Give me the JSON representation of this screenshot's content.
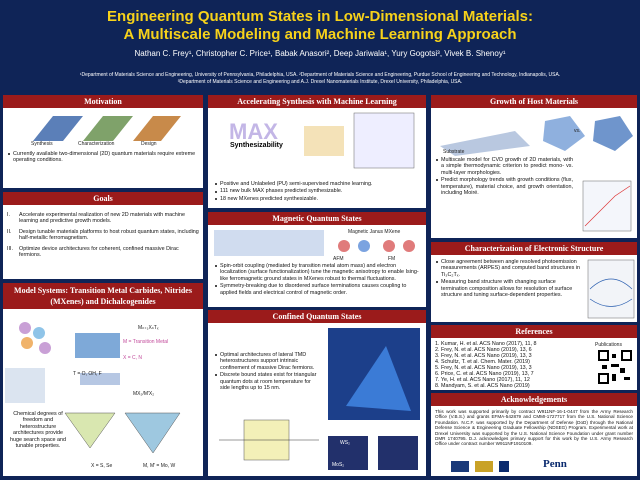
{
  "header": {
    "title_line1": "Engineering Quantum States in Low-Dimensional Materials:",
    "title_line2": "A Multiscale Modeling and Machine Learning Approach",
    "authors": "Nathan C. Frey¹, Christopher C. Price¹, Babak Anasori², Deep Jariwala¹, Yury Gogotsi³, Vivek B. Shenoy¹",
    "affiliations": [
      "¹Department of Materials Science and Engineering, University of Pennsylvania, Philadelphia, USA. ²Department of Materials Science and Engineering, Purdue School of Engineering and Technology, Indianapolis, USA.",
      "³Department of Materials Science and Engineering and A.J. Drexel Nanomaterials Institute, Drexel University, Philadelphia, USA."
    ]
  },
  "motivation": {
    "heading": "Motivation",
    "figure_labels": [
      "Synthesis",
      "Characterization",
      "Design"
    ],
    "bullets": [
      "Currently available two-dimensional (2D) quantum materials require extreme operating conditions."
    ]
  },
  "goals": {
    "heading": "Goals",
    "markers": [
      "I.",
      "II.",
      "III."
    ],
    "items": [
      "Accelerate experimental realization of new 2D materials with machine learning and predictive growth models.",
      "Design tunable materials platforms to host robust quantum states, including half-metallic ferromagnetism.",
      "Optimize device architectures for coherent, confined massive Dirac fermions."
    ]
  },
  "model_systems": {
    "heading": "Model Systems: Transition Metal Carbides, Nitrides (MXenes) and Dichalcogenides",
    "labels": [
      "Mₙ₊₁XₙTₓ",
      "M = Transition Metal",
      "X = C, N",
      "T = O, OH, F",
      "MX₂/M′X₂",
      "X = S, Se",
      "M, M′ = Mo, W"
    ],
    "caption": "Chemical degrees of freedom and heterostructure architectures provide huge search space and tunable properties."
  },
  "accelerating": {
    "heading": "Accelerating Synthesis with Machine Learning",
    "figure_label": "Synthesizability",
    "bullets": [
      "Positive and Unlabeled (PU) semi-supervised machine learning.",
      "111 new bulk MAX phases predicted synthesizable.",
      "18 new MXenes predicted synthesizable."
    ]
  },
  "magnetic": {
    "heading": "Magnetic Quantum States",
    "labels": [
      "Magnetic Janus MXene",
      "AFM",
      "FM"
    ],
    "bullets": [
      "Spin-orbit coupling (mediated by transition metal atom mass) and electron localization (surface functionalization) tune the magnetic anisotropy to enable Ising-like ferromagnetic ground states in MXenes robust to thermal fluctuations.",
      "Symmetry-breaking due to disordered surface terminations causes coupling to applied fields and electrical control of magnetic order."
    ]
  },
  "confined": {
    "heading": "Confined Quantum States",
    "bullets": [
      "Optimal architectures of lateral TMD heterostructures support intrinsic confinement of massive Dirac fermions.",
      "Discrete bound states exist for triangular quantum dots at room temperature for side lengths up to 15 nm."
    ],
    "labels": [
      "WS₂",
      "MoS₂"
    ]
  },
  "growth": {
    "heading": "Growth of Host Materials",
    "labels": [
      "Substrate",
      "vs."
    ],
    "bullets": [
      "Multiscale model for CVD growth of 2D materials, with a simple thermodynamic criterion to predict mono- vs. multi-layer morphologies.",
      "Predict morphology trends with growth conditions (flux, temperature), material choice, and growth orientation, including Moiré."
    ]
  },
  "characterization": {
    "heading": "Characterization of Electronic Structure",
    "bullets": [
      "Close agreement between angle resolved photoemission measurements (ARPES) and computed band structures in Ti₃C₂Tₓ.",
      "Measuring band structure with changing surface termination composition allows for resolution of surface structure and tuning surface-dependent properties."
    ]
  },
  "references": {
    "heading": "References",
    "items": [
      "1. Kumar, H. et al. ACS Nano (2017), 11, 8",
      "2. Frey, N. et al. ACS Nano (2019), 13, 6",
      "3. Frey, N. et al. ACS Nano (2019), 13, 3",
      "4. Schultz, T. et al. Chem. Mater. (2019)",
      "5. Frey, N. et al. ACS Nano (2019), 13, 3",
      "6. Price, C. et al. ACS Nano (2019), 13, 7",
      "7. Ye, H. et al. ACS Nano (2017), 11, 12",
      "8. Mandyam, S. et al. ACS Nano (2019)"
    ],
    "qr_label": "Publications"
  },
  "acknowledgements": {
    "heading": "Acknowledgements",
    "text": "This work was supported primarily by contract W911NF-16-1-0447 from the Army Research Office (V.B.S.) and grants EFMA-542879 and CMMI-1727717 from the U.S. National Science Foundation. N.C.F. was supported by the Department of Defense (DoD) through the National Defense Science & Engineering Graduate Fellowship (NDSEG) Program. Experimental work at Drexel University was supported by the U.S. National Science Foundation under grant number DMR 1740795. D.J. acknowledges primary support for this work by the U.S. Army Research Office under contract number W911NF1910109.",
    "logo": "Penn"
  }
}
